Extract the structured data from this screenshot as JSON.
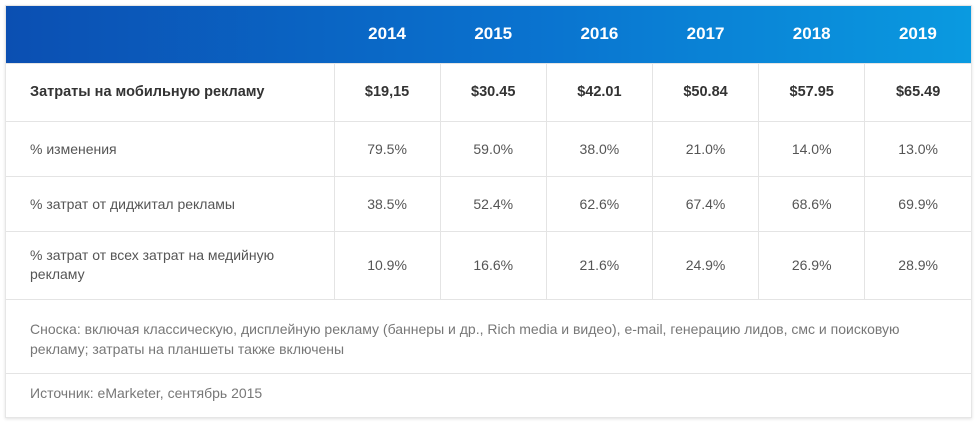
{
  "chart_data": {
    "type": "table",
    "columns": [
      "",
      "2014",
      "2015",
      "2016",
      "2017",
      "2018",
      "2019"
    ],
    "rows": [
      {
        "label": "Затраты на мобильную рекламу",
        "values": [
          "$19,15",
          "$30.45",
          "$42.01",
          "$50.84",
          "$57.95",
          "$65.49"
        ]
      },
      {
        "label": "% изменения",
        "values": [
          "79.5%",
          "59.0%",
          "38.0%",
          "21.0%",
          "14.0%",
          "13.0%"
        ]
      },
      {
        "label": "% затрат от диджитал рекламы",
        "values": [
          "38.5%",
          "52.4%",
          "62.6%",
          "67.4%",
          "68.6%",
          "69.9%"
        ]
      },
      {
        "label": "% затрат от всех затрат на медийную рекламу",
        "values": [
          "10.9%",
          "16.6%",
          "21.6%",
          "24.9%",
          "26.9%",
          "28.9%"
        ]
      }
    ],
    "footnote": "Сноска: включая классическую, дисплейную рекламу (баннеры и др., Rich media и видео), e-mail, генерацию лидов, смс и поисковую рекламу; затраты на планшеты также включены",
    "source": "Источник: eMarketer, сентябрь 2015"
  },
  "colors": {
    "header_gradient_start": "#0b4fb2",
    "header_gradient_end": "#0a9ae0",
    "header_text": "#ffffff"
  }
}
